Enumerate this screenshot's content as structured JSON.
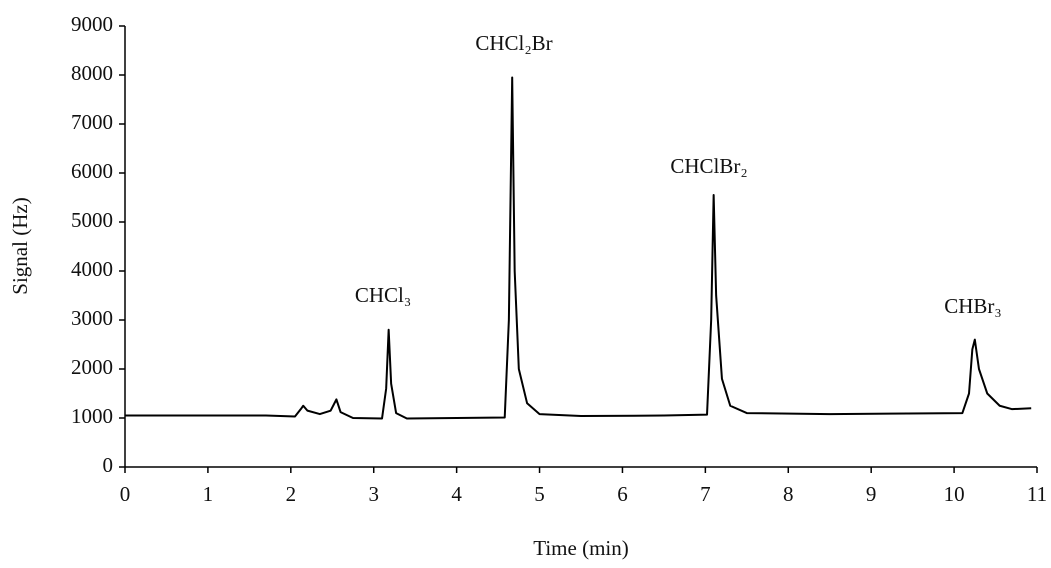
{
  "chart_data": {
    "type": "line",
    "x_label": "Time (min)",
    "y_label": "Signal (Hz)",
    "annotations": [
      "CHCl₃",
      "CHCl₂Br",
      "CHClBr₂",
      "CHBr₃"
    ],
    "color": "#000000",
    "x": [
      0,
      1.7,
      2.05,
      2.12,
      2.15,
      2.2,
      2.35,
      2.48,
      2.55,
      2.6,
      2.75,
      3.1,
      3.15,
      3.18,
      3.21,
      3.27,
      3.4,
      4.0,
      4.58,
      4.63,
      4.67,
      4.7,
      4.75,
      4.85,
      5.0,
      5.5,
      6.5,
      7.02,
      7.07,
      7.1,
      7.13,
      7.2,
      7.3,
      7.5,
      8.5,
      10.1,
      10.18,
      10.22,
      10.25,
      10.3,
      10.4,
      10.55,
      10.7,
      10.93
    ],
    "values": [
      1050,
      1050,
      1030,
      1180,
      1250,
      1150,
      1080,
      1150,
      1380,
      1120,
      1000,
      990,
      1600,
      2800,
      1700,
      1100,
      990,
      1000,
      1010,
      3000,
      7950,
      4000,
      2000,
      1300,
      1080,
      1040,
      1050,
      1070,
      3000,
      5550,
      3500,
      1800,
      1250,
      1100,
      1080,
      1100,
      1500,
      2400,
      2600,
      2000,
      1500,
      1250,
      1180,
      1200
    ],
    "xlim": [
      0,
      11
    ],
    "xticks": [
      0,
      1,
      2,
      3,
      4,
      5,
      6,
      7,
      8,
      9,
      10,
      11
    ],
    "ylim": [
      0,
      9000
    ],
    "yticks": [
      0,
      1000,
      2000,
      3000,
      4000,
      5000,
      6000,
      7000,
      8000,
      9000
    ]
  }
}
